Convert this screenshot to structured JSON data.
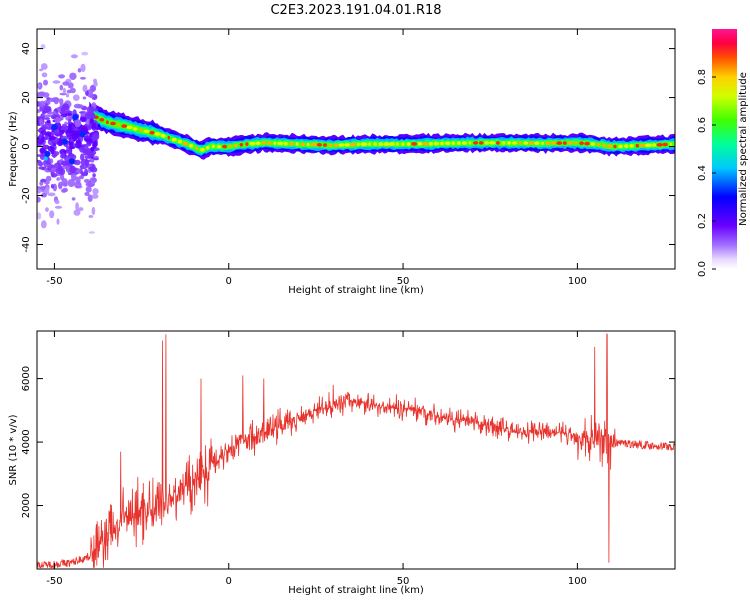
{
  "title": "C2E3.2023.191.04.01.R18",
  "chart_data": [
    {
      "type": "heatmap",
      "xlabel": "Height of straight line (km)",
      "ylabel": "Frequency (Hz)",
      "xlim": [
        -55,
        128
      ],
      "ylim": [
        -50,
        48
      ],
      "xticks": [
        -50,
        0,
        50,
        100
      ],
      "yticks": [
        -40,
        -20,
        0,
        20,
        40
      ],
      "colorbar": {
        "label": "Normalized spectral amplitude",
        "range": [
          0.0,
          1.0
        ],
        "ticks": [
          "0.0",
          "0.2",
          "0.4",
          "0.6",
          "0.8"
        ],
        "colormap": "rainbow (white → violet → blue → cyan → green → yellow → orange → red → magenta)"
      },
      "ridge": {
        "x": [
          -52,
          -48,
          -44,
          -41,
          -38,
          -35,
          -32,
          -29,
          -26,
          -23,
          -20,
          -17,
          -14,
          -11,
          -8,
          -5,
          0,
          5,
          10,
          20,
          30,
          40,
          50,
          60,
          70,
          80,
          90,
          100,
          105,
          110,
          120,
          128
        ],
        "frequency": [
          3,
          5,
          6,
          14,
          12,
          10,
          9,
          8,
          7,
          6,
          5,
          3.5,
          2,
          0.5,
          -1.5,
          0,
          0,
          1,
          1.5,
          1,
          0.5,
          1,
          1,
          1.2,
          1.5,
          1.5,
          1.3,
          1.5,
          1,
          0,
          0.5,
          1
        ]
      },
      "scatter_region": {
        "x_range": [
          -55,
          -38
        ],
        "frequency_range": [
          -50,
          48
        ]
      },
      "grid": false
    },
    {
      "type": "line",
      "xlabel": "Height of straight line (km)",
      "ylabel": "SNR (10 * v/v)",
      "xlim": [
        -55,
        128
      ],
      "ylim": [
        0,
        7500
      ],
      "xticks": [
        -50,
        0,
        50,
        100
      ],
      "yticks": [
        2000,
        4000,
        6000
      ],
      "color": "#e8332d",
      "envelope": {
        "x": [
          -55,
          -50,
          -45,
          -40,
          -35,
          -30,
          -25,
          -20,
          -15,
          -10,
          -5,
          0,
          5,
          10,
          15,
          20,
          25,
          30,
          35,
          40,
          45,
          50,
          55,
          60,
          65,
          70,
          75,
          80,
          85,
          90,
          95,
          100,
          105,
          110,
          115,
          120,
          128
        ],
        "values": [
          100,
          150,
          200,
          400,
          1000,
          1600,
          1800,
          2000,
          2400,
          2800,
          3300,
          3800,
          4100,
          4300,
          4500,
          4800,
          5000,
          5200,
          5300,
          5200,
          5100,
          5050,
          5000,
          4800,
          4700,
          4600,
          4500,
          4400,
          4300,
          4300,
          4300,
          4200,
          4100,
          4000,
          3950,
          3900,
          3850
        ]
      },
      "spikes": {
        "x": [
          -31,
          -19,
          -18,
          -8,
          4,
          10,
          30,
          105,
          108.5,
          109
        ],
        "values": [
          3700,
          7200,
          7400,
          6000,
          6100,
          6000,
          5800,
          7000,
          7400,
          200
        ]
      },
      "grid": false
    }
  ]
}
